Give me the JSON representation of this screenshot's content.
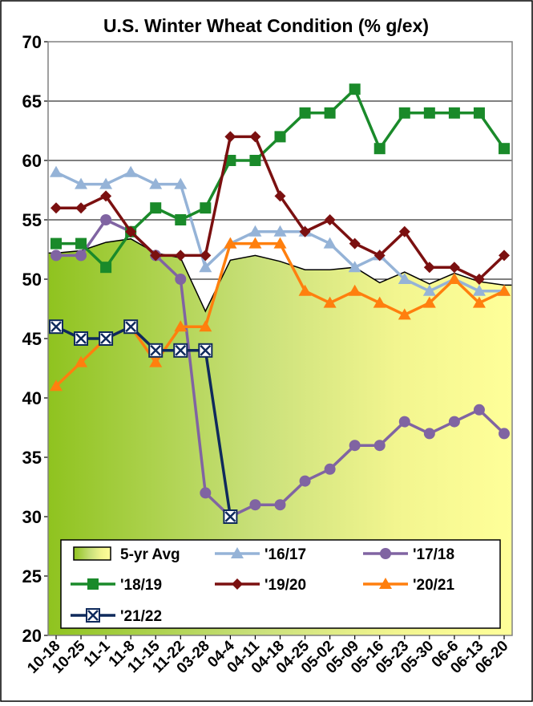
{
  "chart_data": {
    "type": "line",
    "title": "U.S. Winter Wheat Condition (% g/ex)",
    "xlabel": "",
    "ylabel": "",
    "ylim": [
      20,
      70
    ],
    "yticks": [
      20,
      25,
      30,
      35,
      40,
      45,
      50,
      55,
      60,
      65,
      70
    ],
    "grid": true,
    "legend_position": "bottom-left",
    "categories": [
      "10-18",
      "10-25",
      "11-1",
      "11-8",
      "11-15",
      "11-22",
      "03-28",
      "04-4",
      "04-11",
      "04-18",
      "04-25",
      "05-02",
      "05-09",
      "05-16",
      "05-23",
      "05-30",
      "06-6",
      "06-13",
      "06-20"
    ],
    "series": [
      {
        "name": "5-yr Avg",
        "type": "area",
        "color": "#000000",
        "values": [
          52.2,
          52.4,
          53.1,
          53.4,
          52.2,
          51.8,
          47.3,
          51.6,
          52.0,
          51.5,
          50.8,
          50.8,
          51.0,
          49.7,
          50.6,
          49.6,
          50.5,
          49.8,
          49.5
        ]
      },
      {
        "name": "'16/17",
        "color": "#95b3d7",
        "marker": "triangle",
        "values": [
          59,
          58,
          58,
          59,
          58,
          58,
          51,
          53,
          54,
          54,
          54,
          53,
          51,
          52,
          50,
          49,
          50,
          49,
          49
        ]
      },
      {
        "name": "'17/18",
        "color": "#8064a2",
        "marker": "circle",
        "values": [
          52,
          52,
          55,
          54,
          52,
          50,
          32,
          30,
          31,
          31,
          33,
          34,
          36,
          36,
          38,
          37,
          38,
          39,
          37
        ]
      },
      {
        "name": "'18/19",
        "color": "#1a8a2a",
        "marker": "square",
        "values": [
          53,
          53,
          51,
          54,
          56,
          55,
          56,
          60,
          60,
          62,
          64,
          64,
          66,
          61,
          64,
          64,
          64,
          64,
          61
        ]
      },
      {
        "name": "'19/20",
        "color": "#7b1010",
        "marker": "diamond",
        "values": [
          56,
          56,
          57,
          54,
          52,
          52,
          52,
          62,
          62,
          57,
          54,
          55,
          53,
          52,
          54,
          51,
          51,
          50,
          52
        ]
      },
      {
        "name": "'20/21",
        "color": "#ff7f0e",
        "marker": "triangle",
        "values": [
          41,
          43,
          45,
          46,
          43,
          46,
          46,
          53,
          53,
          53,
          49,
          48,
          49,
          48,
          47,
          48,
          50,
          48,
          49
        ]
      },
      {
        "name": "'21/22",
        "color": "#0f2a5c",
        "marker": "xbox",
        "values": [
          46,
          45,
          45,
          46,
          44,
          44,
          44,
          30,
          null,
          null,
          null,
          null,
          null,
          null,
          null,
          null,
          null,
          null,
          null
        ]
      }
    ],
    "legend": [
      "5-yr Avg",
      "'16/17",
      "'17/18",
      "'18/19",
      "'19/20",
      "'20/21",
      "'21/22"
    ]
  }
}
